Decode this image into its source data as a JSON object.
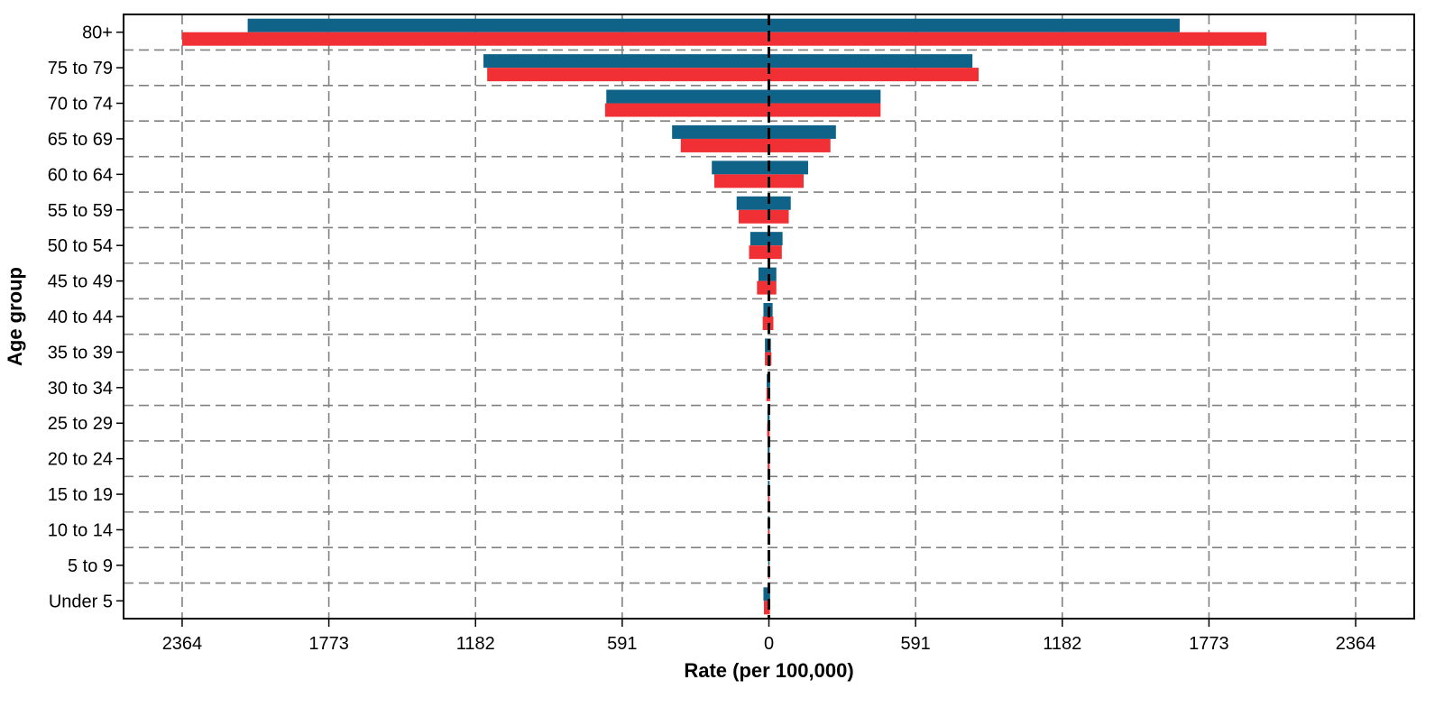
{
  "chart_data": {
    "type": "bar",
    "orientation": "horizontal-butterfly",
    "xlabel": "Rate (per 100,000)",
    "ylabel": "Age group",
    "xlim": [
      -2600,
      2600
    ],
    "x_ticks": [
      -2364,
      -1773,
      -1182,
      -591,
      0,
      591,
      1182,
      1773,
      2364
    ],
    "x_tick_labels": [
      "2364",
      "1773",
      "1182",
      "591",
      "0",
      "591",
      "1182",
      "1773",
      "2364"
    ],
    "grid": true,
    "legend": "none",
    "categories": [
      "80+",
      "75 to 79",
      "70 to 74",
      "65 to 69",
      "60 to 64",
      "55 to 59",
      "50 to 54",
      "45 to 49",
      "40 to 44",
      "35 to 39",
      "30 to 34",
      "25 to 29",
      "20 to 24",
      "15 to 19",
      "10 to 14",
      "5 to 9",
      "Under 5"
    ],
    "series": [
      {
        "color": "#0f6388",
        "left_values": [
          2100,
          1150,
          655,
          390,
          230,
          130,
          75,
          42,
          22,
          16,
          9,
          6,
          5,
          4,
          4,
          3,
          22
        ],
        "right_values": [
          1655,
          820,
          450,
          270,
          158,
          88,
          55,
          30,
          15,
          8,
          5,
          3,
          2,
          2,
          2,
          1,
          5
        ]
      },
      {
        "color": "#f03035",
        "left_values": [
          2364,
          1135,
          660,
          355,
          220,
          122,
          80,
          48,
          25,
          16,
          10,
          7,
          5,
          4,
          4,
          3,
          20
        ],
        "right_values": [
          2005,
          845,
          450,
          248,
          140,
          80,
          52,
          30,
          18,
          10,
          5,
          3,
          2,
          2,
          2,
          1,
          4
        ]
      }
    ],
    "colors": {
      "axis": "#000000",
      "grid": "#808080"
    }
  }
}
